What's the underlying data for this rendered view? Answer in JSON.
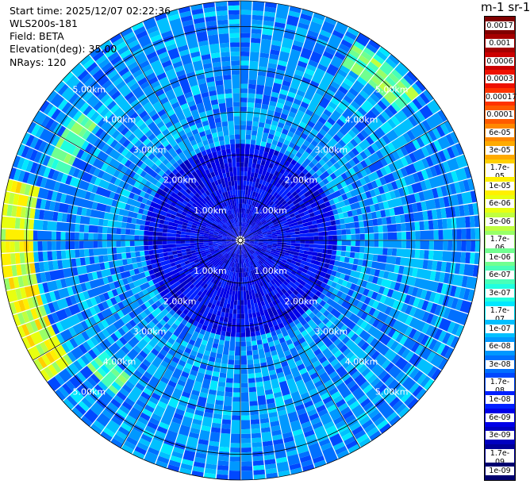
{
  "header": {
    "start_time": "Start time: 2025/12/07 02:22:36",
    "instrument": "WLS200s-181",
    "field": "Field: BETA",
    "elevation": "Elevation(deg): 35.00",
    "nrays": "NRays: 120"
  },
  "colorbar": {
    "unit_title": "m-1 sr-1",
    "labels": [
      "0.0017",
      "0.001",
      "0.0006",
      "0.0003",
      "0.00017",
      "0.0001",
      "6e-05",
      "3e-05",
      "1.7e-05",
      "1e-05",
      "6e-06",
      "3e-06",
      "1.7e-06",
      "1e-06",
      "6e-07",
      "3e-07",
      "1.7e-07",
      "1e-07",
      "6e-08",
      "3e-08",
      "1.7e-08",
      "1e-08",
      "6e-09",
      "3e-09",
      "1.7e-09",
      "1e-09"
    ],
    "colors": [
      "#800000",
      "#a50000",
      "#cc0000",
      "#ee1100",
      "#ff3300",
      "#ff5a00",
      "#ff8800",
      "#ffaa00",
      "#ffd000",
      "#fff000",
      "#e8ff10",
      "#c0ff40",
      "#98ff68",
      "#70ff90",
      "#48ffb8",
      "#20ffe0",
      "#00e8ff",
      "#00c0ff",
      "#0098ff",
      "#0070ff",
      "#0048ff",
      "#0020ff",
      "#0000e8",
      "#0000c0",
      "#000098",
      "#000070"
    ]
  },
  "chart_data": {
    "type": "heatmap",
    "projection": "polar-ppi",
    "title": "",
    "n_rays": 120,
    "field": "BETA",
    "elevation_deg": 35.0,
    "range_rings_km": [
      1,
      2,
      3,
      4,
      5
    ],
    "range_ring_labels": [
      "1.00km",
      "2.00km",
      "3.00km",
      "4.00km",
      "5.00km"
    ],
    "max_range_km": 5.6,
    "color_scale": "log",
    "value_range": [
      1e-09,
      0.0017
    ],
    "typical_value": 5e-08,
    "enhanced_regions": [
      {
        "azimuth_deg": [
          235,
          285
        ],
        "range_km": [
          4.8,
          5.5
        ],
        "value": 5e-06
      },
      {
        "azimuth_deg": [
          30,
          50
        ],
        "range_km": [
          4.7,
          5.3
        ],
        "value": 1e-06
      },
      {
        "azimuth_deg": [
          290,
          310
        ],
        "range_km": [
          4.2,
          4.8
        ],
        "value": 6e-07
      },
      {
        "azimuth_deg": [
          220,
          232
        ],
        "range_km": [
          4.0,
          4.6
        ],
        "value": 6e-07
      }
    ]
  }
}
